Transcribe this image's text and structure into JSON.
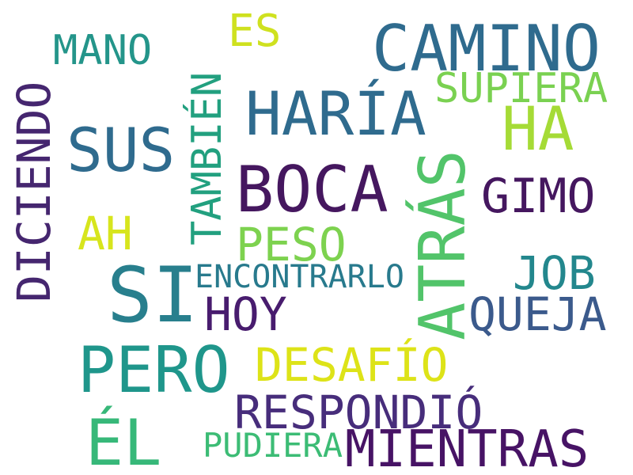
{
  "words": [
    {
      "key": "camino",
      "text": "CAMINO",
      "color": "#2f6b8e"
    },
    {
      "key": "mano",
      "text": "MANO",
      "color": "#24958a"
    },
    {
      "key": "es",
      "text": "ES",
      "color": "#cfe11f"
    },
    {
      "key": "tambien",
      "text": "TAMBIÉN",
      "color": "#22a07f"
    },
    {
      "key": "haria",
      "text": "HARÍA",
      "color": "#2f6b8e"
    },
    {
      "key": "supiera",
      "text": "SUPIERA",
      "color": "#7ad151"
    },
    {
      "key": "ha",
      "text": "HA",
      "color": "#a5db36"
    },
    {
      "key": "diciendo",
      "text": "DICIENDO",
      "color": "#45266f"
    },
    {
      "key": "sus",
      "text": "SUS",
      "color": "#2f6b8e"
    },
    {
      "key": "boca",
      "text": "BOCA",
      "color": "#45175f"
    },
    {
      "key": "atras",
      "text": "ATRÁS",
      "color": "#52c46a"
    },
    {
      "key": "gimo",
      "text": "GIMO",
      "color": "#45175f"
    },
    {
      "key": "ah",
      "text": "AH",
      "color": "#d7e51d"
    },
    {
      "key": "peso",
      "text": "PESO",
      "color": "#7dd24f"
    },
    {
      "key": "si",
      "text": "SI",
      "color": "#287f8d"
    },
    {
      "key": "encontrarlo",
      "text": "ENCONTRARLO",
      "color": "#287a8d"
    },
    {
      "key": "job",
      "text": "JOB",
      "color": "#23878d"
    },
    {
      "key": "hoy",
      "text": "HOY",
      "color": "#481c6e"
    },
    {
      "key": "queja",
      "text": "QUEJA",
      "color": "#3b5a8c"
    },
    {
      "key": "pero",
      "text": "PERO",
      "color": "#1f968b"
    },
    {
      "key": "desafio",
      "text": "DESAFÍO",
      "color": "#dde318"
    },
    {
      "key": "respondio",
      "text": "RESPONDIÓ",
      "color": "#472d7b"
    },
    {
      "key": "el",
      "text": "ÉL",
      "color": "#37b879"
    },
    {
      "key": "pudiera",
      "text": "PUDIERA",
      "color": "#3cbc75"
    },
    {
      "key": "mientras",
      "text": "MIENTRAS",
      "color": "#471365"
    }
  ]
}
